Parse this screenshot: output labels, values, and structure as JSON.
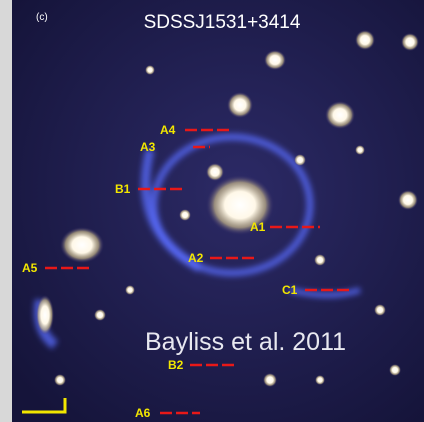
{
  "panel_label": "(c)",
  "title": "SDSSJ1531+3414",
  "labels": [
    "A4",
    "A3",
    "B1",
    "A1",
    "A2",
    "A5",
    "C1",
    "B2",
    "A6"
  ],
  "credit": "Bayliss et al. 2011"
}
